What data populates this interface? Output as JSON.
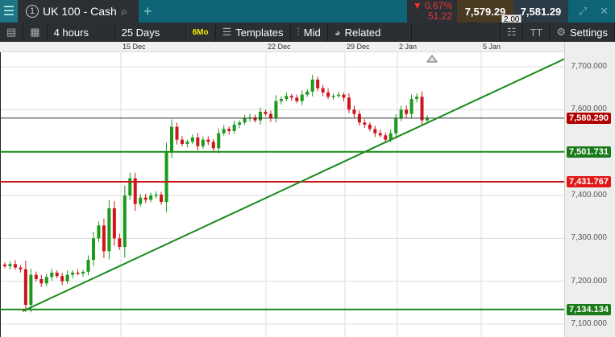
{
  "header": {
    "instrument": "UK 100 - Cash",
    "tab_number": "1",
    "change_pct": "▼ 0.67%",
    "change_pts": "51.22",
    "bid": "7,579.29",
    "ask": "7,581.29",
    "spread": "2.00",
    "menu_icon": "hamburger-icon",
    "search_icon": "search-icon",
    "add_icon": "plus-icon"
  },
  "toolbar": {
    "interval": "4 hours",
    "range": "25 Days",
    "badge": "6Mo",
    "templates": "Templates",
    "price_type": "Mid",
    "related": "Related",
    "font_label": "TT",
    "settings": "Settings"
  },
  "colors": {
    "bull": "#1a9a1a",
    "bear": "#d0141c",
    "trend": "#1a8a1a",
    "current": "#b00000"
  },
  "chart_data": {
    "type": "candlestick",
    "x_ticks": [
      "15 Dec",
      "22 Dec",
      "29 Dec",
      "2 Jan",
      "5 Jan"
    ],
    "y_ticks": [
      "7,700.000",
      "7,600.000",
      "7,400.000",
      "7,300.000",
      "7,200.000",
      "7,100.000"
    ],
    "ylim": [
      7085,
      7725
    ],
    "grid": true,
    "current_price": "7,580.290",
    "levels": [
      {
        "value": "7,501.731",
        "color": "#1a8a1a"
      },
      {
        "value": "7,431.767",
        "color": "#d0141c"
      },
      {
        "value": "7,134.134",
        "color": "#1a8a1a"
      }
    ],
    "trendline": {
      "from": 7130,
      "to": 7718
    },
    "closes": [
      7235,
      7240,
      7232,
      7228,
      7145,
      7215,
      7205,
      7195,
      7210,
      7220,
      7212,
      7200,
      7215,
      7220,
      7218,
      7222,
      7250,
      7300,
      7330,
      7270,
      7370,
      7300,
      7280,
      7400,
      7440,
      7380,
      7395,
      7390,
      7400,
      7402,
      7385,
      7500,
      7560,
      7530,
      7520,
      7525,
      7535,
      7515,
      7530,
      7525,
      7510,
      7545,
      7555,
      7550,
      7565,
      7570,
      7580,
      7582,
      7575,
      7595,
      7590,
      7580,
      7620,
      7625,
      7632,
      7628,
      7620,
      7635,
      7642,
      7670,
      7650,
      7640,
      7630,
      7632,
      7635,
      7628,
      7600,
      7590,
      7570,
      7565,
      7555,
      7545,
      7540,
      7530,
      7545,
      7580,
      7600,
      7590,
      7625,
      7630,
      7575,
      7580
    ]
  }
}
